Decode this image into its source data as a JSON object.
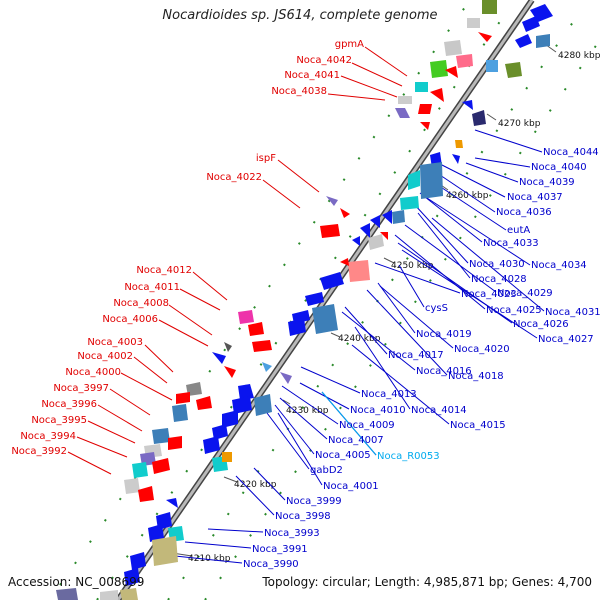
{
  "title": "Nocardioides sp. JS614, complete genome",
  "accession": "Accession: NC_008699",
  "topology": "Topology: circular; Length: 4,985,871 bp; Genes: 4,700",
  "colors": {
    "left_label": "#e00000",
    "right_label": "#0000cc",
    "rna_label": "#00aaee",
    "backbone": "#888888",
    "fwd_arrow": "#ff0000",
    "rev_arrow": "#0a14ee",
    "tick": "#228822"
  },
  "ticks": [
    "4210 kbp",
    "4220 kbp",
    "4230 kbp",
    "4240 kbp",
    "4250 kbp",
    "4260 kbp",
    "4270 kbp",
    "4280 kbp"
  ],
  "left_labels": [
    "gpmA",
    "Noca_4042",
    "Noca_4041",
    "Noca_4038",
    "ispF",
    "Noca_4022",
    "Noca_4012",
    "Noca_4011",
    "Noca_4008",
    "Noca_4006",
    "Noca_4003",
    "Noca_4002",
    "Noca_4000",
    "Noca_3997",
    "Noca_3996",
    "Noca_3995",
    "Noca_3994",
    "Noca_3992"
  ],
  "right_labels": [
    "Noca_4044",
    "Noca_4040",
    "Noca_4039",
    "Noca_4037",
    "Noca_4036",
    "eutA",
    "Noca_4033",
    "Noca_4030",
    "Noca_4034",
    "Noca_4028",
    "Noca_4023",
    "Noca_4029",
    "cysS",
    "Noca_4025",
    "Noca_4031",
    "Noca_4026",
    "Noca_4019",
    "Noca_4027",
    "Noca_4020",
    "Noca_4017",
    "Noca_4016",
    "Noca_4018",
    "Noca_4013",
    "Noca_4010",
    "Noca_4014",
    "Noca_4009",
    "Noca_4015",
    "Noca_4007",
    "Noca_4005",
    "Noca_R0053",
    "gabD2",
    "Noca_4001",
    "Noca_3999",
    "Noca_3998",
    "Noca_3993",
    "Noca_3991",
    "Noca_3990"
  ]
}
